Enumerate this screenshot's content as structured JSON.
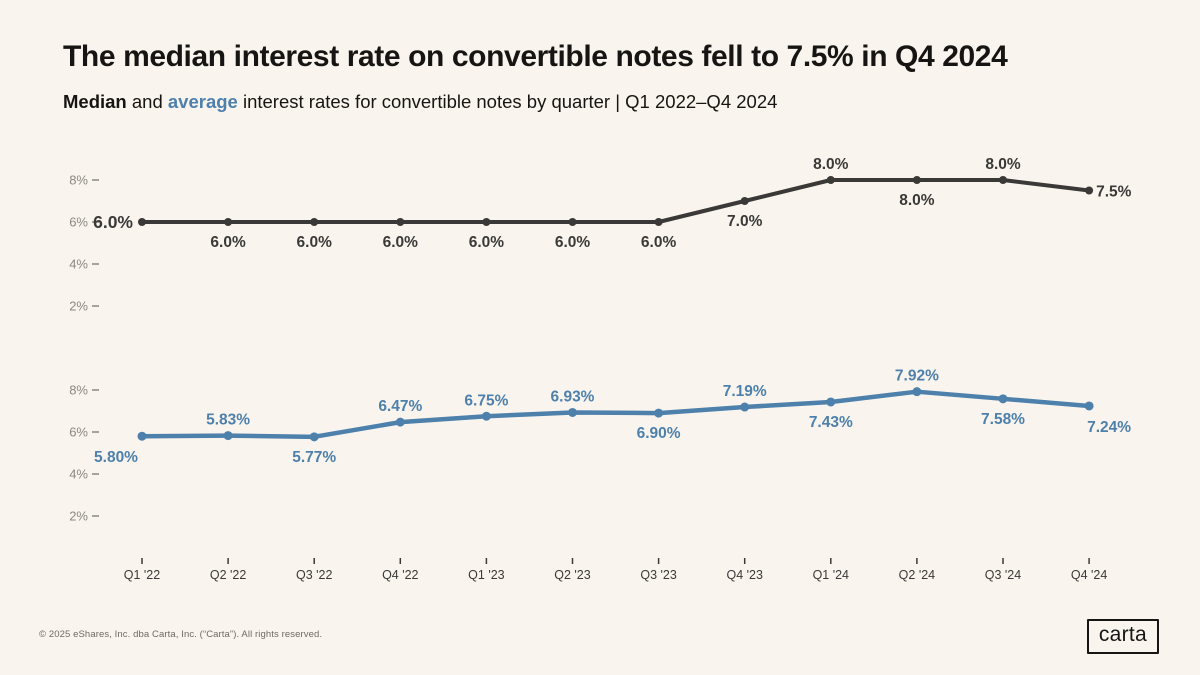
{
  "header": {
    "title": "The median interest rate on convertible notes fell to 7.5% in Q4 2024",
    "subtitle_median": "Median",
    "subtitle_and": "and",
    "subtitle_average": "average",
    "subtitle_rest": "interest rates for convertible notes by quarter | Q1 2022–Q4 2024"
  },
  "chart_data": {
    "type": "line",
    "title": "Median and average interest rates for convertible notes by quarter",
    "categories": [
      "Q1 '22",
      "Q2 '22",
      "Q3 '22",
      "Q4 '22",
      "Q1 '23",
      "Q2 '23",
      "Q3 '23",
      "Q4 '23",
      "Q1 '24",
      "Q2 '24",
      "Q3 '24",
      "Q4 '24"
    ],
    "xlabel": "",
    "ylabel": "",
    "ylim": [
      0,
      9
    ],
    "y_ticks": [
      8,
      6,
      4,
      2
    ],
    "y_tick_suffix": "%",
    "grid": false,
    "legend_position": "inline-in-subtitle",
    "layout": "two-stacked-panels-one-series-each",
    "colors": {
      "median": "#3b3938",
      "average": "#4e80ac",
      "tick_text": "#8b8784",
      "axis_text": "#3b3938",
      "background": "#f9f5ee"
    },
    "series": [
      {
        "name": "Median",
        "panel": "top",
        "color": "#3b3938",
        "values": [
          6.0,
          6.0,
          6.0,
          6.0,
          6.0,
          6.0,
          6.0,
          7.0,
          8.0,
          8.0,
          8.0,
          7.5
        ],
        "labels": [
          "6.0%",
          "6.0%",
          "6.0%",
          "6.0%",
          "6.0%",
          "6.0%",
          "6.0%",
          "7.0%",
          "8.0%",
          "8.0%",
          "8.0%",
          "7.5%"
        ],
        "label_placement": [
          "left",
          "below",
          "below",
          "below",
          "below",
          "below",
          "below",
          "below",
          "above",
          "below",
          "above",
          "right"
        ]
      },
      {
        "name": "Average",
        "panel": "bottom",
        "color": "#4e80ac",
        "values": [
          5.8,
          5.83,
          5.77,
          6.47,
          6.75,
          6.93,
          6.9,
          7.19,
          7.43,
          7.92,
          7.58,
          7.24
        ],
        "labels": [
          "5.80%",
          "5.83%",
          "5.77%",
          "6.47%",
          "6.75%",
          "6.93%",
          "6.90%",
          "7.19%",
          "7.43%",
          "7.92%",
          "7.58%",
          "7.24%"
        ],
        "label_placement": [
          "below-left",
          "above",
          "below",
          "above",
          "above",
          "above",
          "below",
          "above",
          "below",
          "above",
          "below",
          "below-right"
        ]
      }
    ]
  },
  "footer": {
    "copyright": "© 2025 eShares, Inc. dba Carta, Inc. (“Carta”). All rights reserved.",
    "logo_text": "carta"
  }
}
